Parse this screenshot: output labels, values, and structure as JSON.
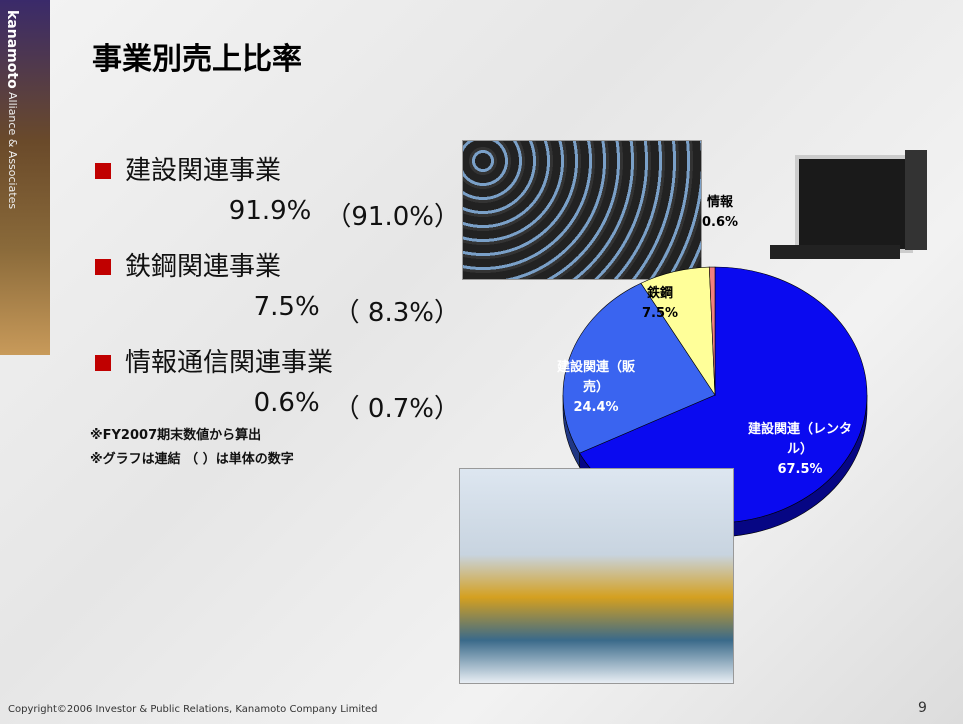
{
  "title": "事業別売上比率",
  "sidebar": {
    "brand": "kanamoto",
    "tagline": "Alliance & Associates"
  },
  "bullets": [
    {
      "label": "建設関連事業",
      "value": "91.9%",
      "standalone": "（91.0%）"
    },
    {
      "label": "鉄鋼関連事業",
      "value": "7.5%",
      "standalone": "（ 8.3%）"
    },
    {
      "label": "情報通信関連事業",
      "value": "0.6%",
      "standalone": "（ 0.7%）"
    }
  ],
  "notes": [
    "※FY2007期末数値から算出",
    "※グラフは連結 （ ）は単体の数字"
  ],
  "footer": "Copyright©2006 Investor & Public Relations, Kanamoto Company Limited",
  "page_number": "9",
  "chart_data": {
    "type": "pie",
    "categories": [
      "建設関連（レンタル）",
      "建設関連（販売）",
      "鉄鋼",
      "情報"
    ],
    "values": [
      67.5,
      24.4,
      7.5,
      0.6
    ],
    "value_labels": [
      "67.5%",
      "24.4%",
      "7.5%",
      "0.6%"
    ],
    "colors": [
      "#0a0af0",
      "#3a64f0",
      "#ffff99",
      "#f08080"
    ]
  }
}
